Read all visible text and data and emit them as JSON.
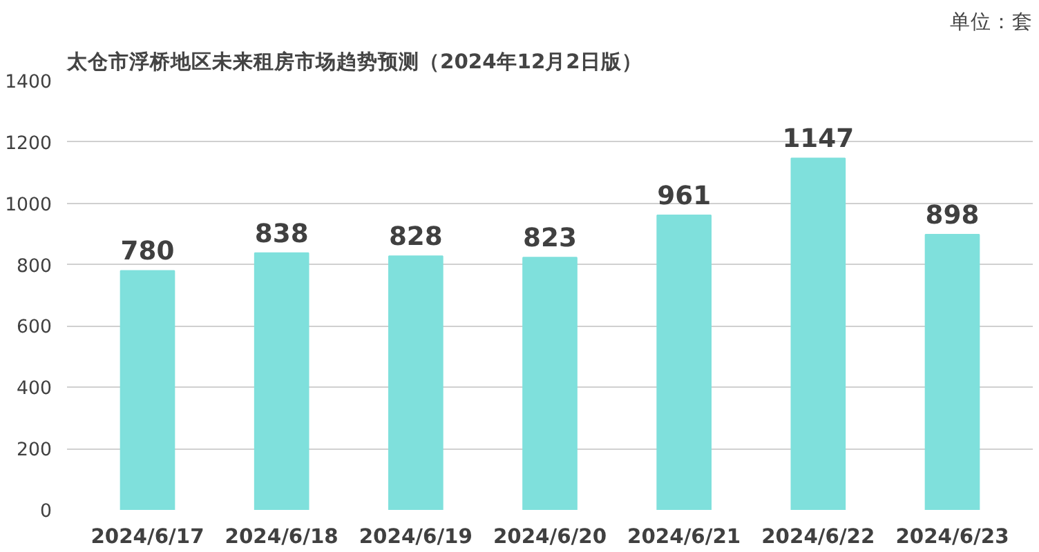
{
  "chart_data": {
    "type": "bar",
    "title": "太仓市浮桥地区未来租房市场趋势预测（2024年12月2日版）",
    "annotations": [
      "单位：套"
    ],
    "categories": [
      "2024/6/17",
      "2024/6/18",
      "2024/6/19",
      "2024/6/20",
      "2024/6/21",
      "2024/6/22",
      "2024/6/23"
    ],
    "values": [
      780,
      838,
      828,
      823,
      961,
      1147,
      898
    ],
    "color": "#7fe0dc",
    "ylim": [
      0,
      1400
    ],
    "yticks": [
      0,
      200,
      400,
      600,
      800,
      1000,
      1200,
      1400
    ],
    "grid": "y",
    "data_labels": true
  }
}
